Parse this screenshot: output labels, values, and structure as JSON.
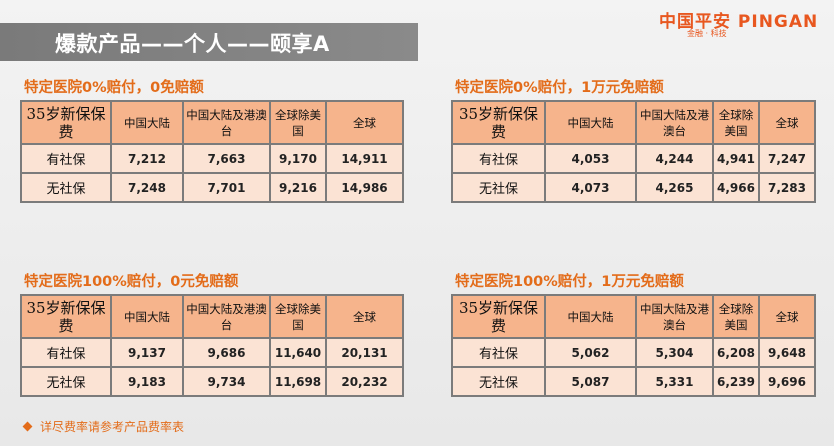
{
  "header": {
    "title": "爆款产品——个人——颐享A",
    "logo_main": "中国平安 PINGAN",
    "logo_sub": "金融 · 科技"
  },
  "table_header": {
    "age": "35岁新保保费",
    "col1": "中国大陆",
    "col2": "中国大陆及港澳台",
    "col3": "全球除美国",
    "col4": "全球"
  },
  "tables": [
    {
      "title": "特定医院0%赔付，0免赔额",
      "rows": [
        {
          "label": "有社保",
          "values": [
            "7,212",
            "7,663",
            "9,170",
            "14,911"
          ]
        },
        {
          "label": "无社保",
          "values": [
            "7,248",
            "7,701",
            "9,216",
            "14,986"
          ]
        }
      ]
    },
    {
      "title": "特定医院0%赔付，1万元免赔额",
      "rows": [
        {
          "label": "有社保",
          "values": [
            "4,053",
            "4,244",
            "4,941",
            "7,247"
          ]
        },
        {
          "label": "无社保",
          "values": [
            "4,073",
            "4,265",
            "4,966",
            "7,283"
          ]
        }
      ]
    },
    {
      "title": "特定医院100%赔付，0元免赔额",
      "rows": [
        {
          "label": "有社保",
          "values": [
            "9,137",
            "9,686",
            "11,640",
            "20,131"
          ]
        },
        {
          "label": "无社保",
          "values": [
            "9,183",
            "9,734",
            "11,698",
            "20,232"
          ]
        }
      ]
    },
    {
      "title": "特定医院100%赔付，1万元免赔额",
      "rows": [
        {
          "label": "有社保",
          "values": [
            "5,062",
            "5,304",
            "6,208",
            "9,648"
          ]
        },
        {
          "label": "无社保",
          "values": [
            "5,087",
            "5,331",
            "6,239",
            "9,696"
          ]
        }
      ]
    }
  ],
  "footnote": "详尽费率请参考产品费率表",
  "colors": {
    "accent": "#e36c1a",
    "header_cell": "#f6b48c",
    "row_cell": "#fbe3d4",
    "title_bar": "#7f7f7f"
  }
}
